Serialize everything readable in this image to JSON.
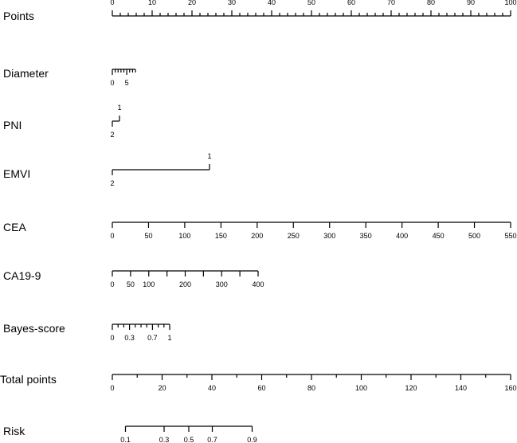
{
  "chart_data": {
    "type": "nomogram",
    "rows": [
      {
        "name": "Points",
        "label": "Points",
        "kind": "axis",
        "tick_pos": "above",
        "range": [
          0,
          100
        ],
        "major": [
          0,
          10,
          20,
          30,
          40,
          50,
          60,
          70,
          80,
          90,
          100
        ],
        "minor_step": 2,
        "points_range": [
          0,
          100
        ]
      },
      {
        "name": "Diameter",
        "label": "Diameter",
        "kind": "axis",
        "tick_pos": "below",
        "range": [
          0,
          8
        ],
        "major": [
          0,
          5
        ],
        "minor_step": 1,
        "points_range": [
          0,
          5.8
        ]
      },
      {
        "name": "PNI",
        "label": "PNI",
        "kind": "categorical",
        "levels": [
          {
            "label": "2",
            "points": 0,
            "side": "below"
          },
          {
            "label": "1",
            "points": 1.8,
            "side": "above"
          }
        ]
      },
      {
        "name": "EMVI",
        "label": "EMVI",
        "kind": "categorical",
        "levels": [
          {
            "label": "2",
            "points": 0,
            "side": "below"
          },
          {
            "label": "1",
            "points": 24.4,
            "side": "above"
          }
        ]
      },
      {
        "name": "CEA",
        "label": "CEA",
        "kind": "axis",
        "tick_pos": "below",
        "range": [
          0,
          550
        ],
        "major": [
          0,
          50,
          100,
          150,
          200,
          250,
          300,
          350,
          400,
          450,
          500,
          550
        ],
        "minor_step": 0,
        "points_range": [
          0,
          100
        ]
      },
      {
        "name": "CA19-9",
        "label": "CA19-9",
        "kind": "axis",
        "tick_pos": "below",
        "range": [
          0,
          400
        ],
        "major": [
          0,
          50,
          100,
          200,
          300,
          400
        ],
        "minor_step": 0,
        "extra_ticks": [
          150,
          250,
          350
        ],
        "points_range": [
          0,
          36.6
        ]
      },
      {
        "name": "Bayes-score",
        "label": "Bayes-score",
        "kind": "axis",
        "tick_pos": "below",
        "range": [
          0,
          1
        ],
        "major": [
          0,
          0.3,
          0.7,
          1
        ],
        "minor_step": 0.1,
        "points_range": [
          0,
          14.4
        ]
      },
      {
        "name": "Total points",
        "label": "Total points",
        "kind": "axis",
        "tick_pos": "below",
        "range": [
          0,
          160
        ],
        "major": [
          0,
          20,
          40,
          60,
          80,
          100,
          120,
          140,
          160
        ],
        "minor_step": 10,
        "points_range": [
          0,
          100
        ]
      },
      {
        "name": "Risk",
        "label": "Risk",
        "kind": "risk",
        "tick_pos": "below",
        "ticks": [
          {
            "label": "0.1",
            "points": 3.3
          },
          {
            "label": "0.3",
            "points": 13.0
          },
          {
            "label": "0.5",
            "points": 19.2
          },
          {
            "label": "0.7",
            "points": 25.1
          },
          {
            "label": "0.9",
            "points": 35.1
          }
        ]
      }
    ]
  }
}
